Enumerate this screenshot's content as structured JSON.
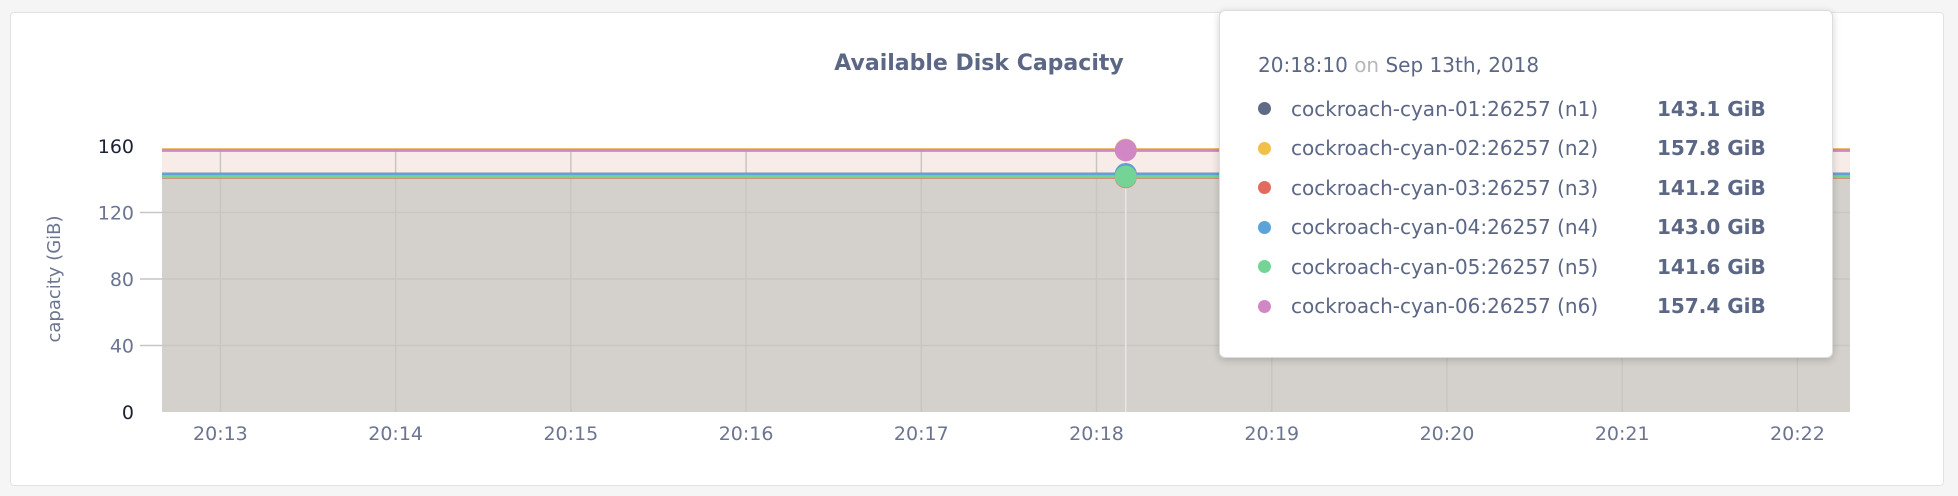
{
  "chart_data": {
    "type": "line",
    "title": "Available Disk Capacity",
    "ylabel": "capacity (GiB)",
    "ylim": [
      0,
      160
    ],
    "yticks": [
      "0",
      "40",
      "80",
      "120",
      "160"
    ],
    "xticks": [
      "20:13",
      "20:14",
      "20:15",
      "20:16",
      "20:17",
      "20:18",
      "20:19",
      "20:20",
      "20:21",
      "20:22"
    ],
    "xrange": [
      "20:12:40",
      "20:22:18"
    ],
    "grid": true,
    "series": [
      {
        "name": "cockroach-cyan-01:26257 (n1)",
        "value": 143.1,
        "display": "143.1 GiB",
        "color": "#5f6b86"
      },
      {
        "name": "cockroach-cyan-02:26257 (n2)",
        "value": 157.8,
        "display": "157.8 GiB",
        "color": "#f0c04b"
      },
      {
        "name": "cockroach-cyan-03:26257 (n3)",
        "value": 141.2,
        "display": "141.2 GiB",
        "color": "#e26a5f"
      },
      {
        "name": "cockroach-cyan-04:26257 (n4)",
        "value": 143.0,
        "display": "143.0 GiB",
        "color": "#5ba3d9"
      },
      {
        "name": "cockroach-cyan-05:26257 (n5)",
        "value": 141.6,
        "display": "141.6 GiB",
        "color": "#74d496"
      },
      {
        "name": "cockroach-cyan-06:26257 (n6)",
        "value": 157.4,
        "display": "157.4 GiB",
        "color": "#d087c4"
      }
    ]
  },
  "tooltip": {
    "time": "20:18:10",
    "on": "on",
    "date": "Sep 13th, 2018"
  }
}
